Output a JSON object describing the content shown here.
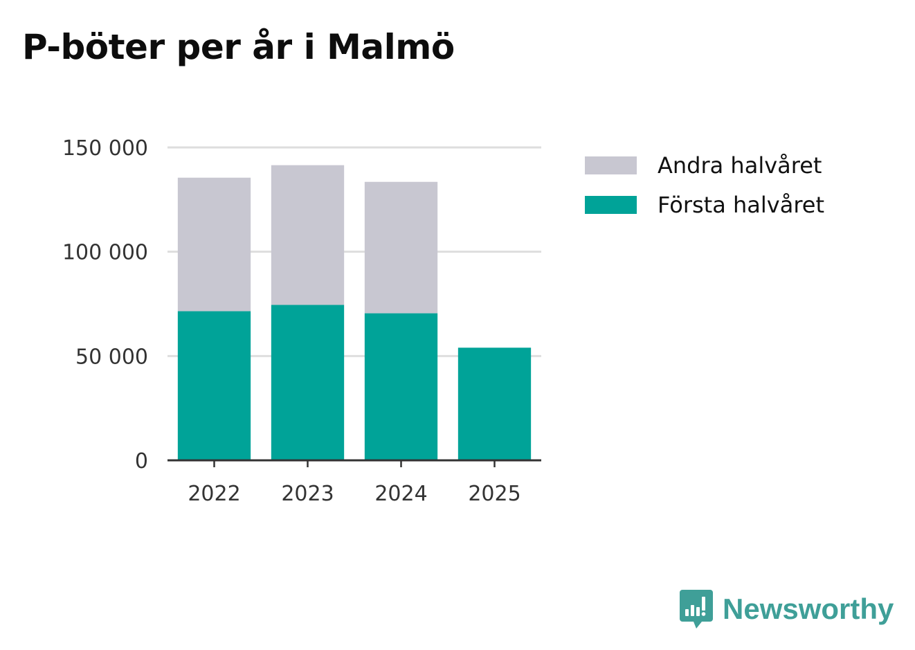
{
  "title": "P-böter per år i Malmö",
  "chart_data": {
    "type": "bar",
    "stacked": true,
    "title": "P-böter per år i Malmö",
    "xlabel": "",
    "ylabel": "",
    "categories": [
      "2022",
      "2023",
      "2024",
      "2025"
    ],
    "series": [
      {
        "name": "Första halvåret",
        "color": "#00a398",
        "values": [
          71500,
          74500,
          70500,
          54000
        ]
      },
      {
        "name": "Andra halvåret",
        "color": "#c8c7d1",
        "values": [
          64000,
          67000,
          63000,
          0
        ]
      }
    ],
    "yticks": [
      0,
      50000,
      100000,
      150000
    ],
    "ytick_labels": [
      "0",
      "50 000",
      "100 000",
      "150 000"
    ],
    "ylim": [
      0,
      150000
    ],
    "grid": true,
    "legend": {
      "position": "right",
      "items": [
        {
          "label": "Andra halvåret",
          "color": "#c8c7d1"
        },
        {
          "label": "Första halvåret",
          "color": "#00a398"
        }
      ]
    }
  },
  "brand": {
    "name": "Newsworthy",
    "logo_icon": "newsworthy-logo-icon",
    "color": "#3f9f98"
  }
}
